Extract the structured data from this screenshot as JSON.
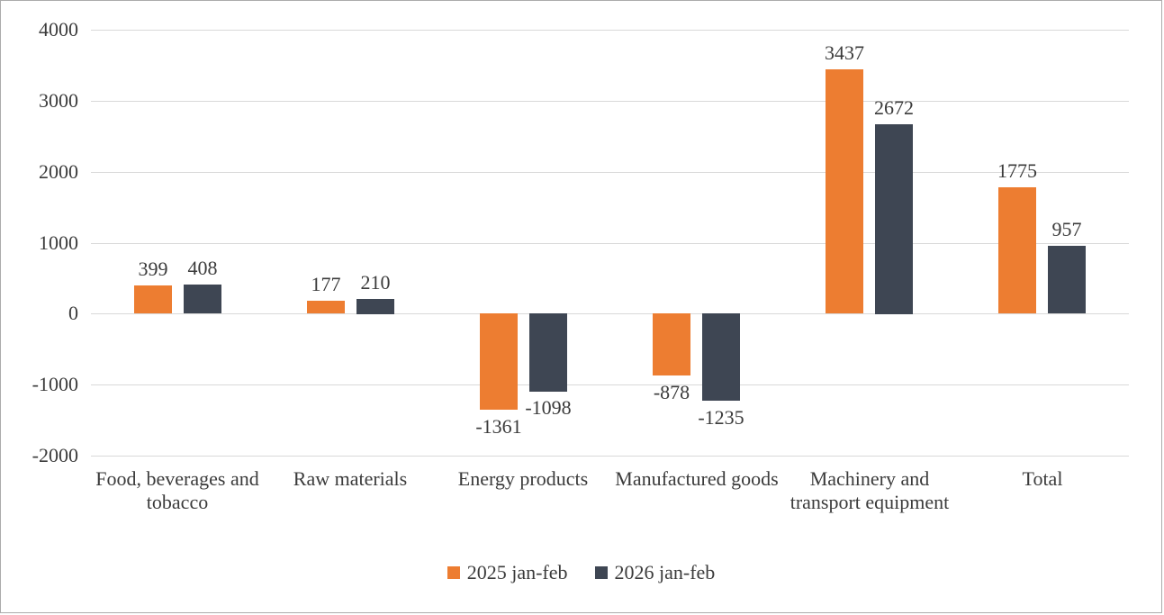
{
  "chart_data": {
    "type": "bar",
    "categories": [
      "Food, beverages and tobacco",
      "Raw materials",
      "Energy products",
      "Manufactured goods",
      "Machinery and transport equipment",
      "Total"
    ],
    "series": [
      {
        "name": "2025 jan-feb",
        "color": "#ED7D31",
        "values": [
          399,
          177,
          -1361,
          -878,
          3437,
          1775
        ]
      },
      {
        "name": "2026 jan-feb",
        "color": "#3E4653",
        "values": [
          408,
          210,
          -1098,
          -1235,
          2672,
          957
        ]
      }
    ],
    "ylim": [
      -2000,
      4000
    ],
    "yticks": [
      -2000,
      -1000,
      0,
      1000,
      2000,
      3000,
      4000
    ],
    "grid": "horizontal",
    "legend_position": "bottom",
    "value_labels": true
  },
  "colors": {
    "grid": "#d9d9d9",
    "text": "#3b3b3b",
    "border": "#ababab",
    "background": "#ffffff"
  }
}
